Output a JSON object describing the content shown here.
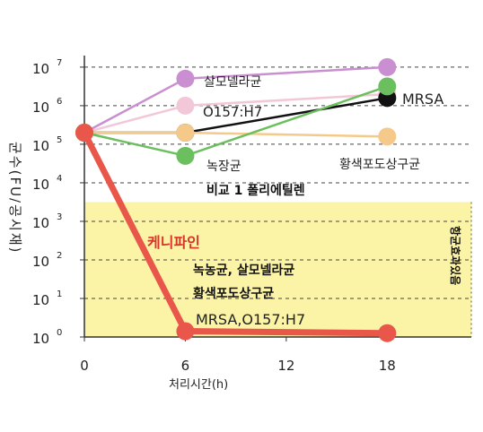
{
  "chart_data": {
    "type": "line",
    "xlabel": "처리시간(h)",
    "ylabel": "균수(FU/공시재)",
    "x_ticks": [
      0,
      6,
      12,
      18
    ],
    "xlim": [
      0,
      23
    ],
    "ylim": [
      0,
      7.3
    ],
    "y_ticks": [
      {
        "v": 0,
        "base": "10",
        "exp": "0"
      },
      {
        "v": 1,
        "base": "10",
        "exp": "1"
      },
      {
        "v": 2,
        "base": "10",
        "exp": "2"
      },
      {
        "v": 3,
        "base": "10",
        "exp": "3"
      },
      {
        "v": 4,
        "base": "10",
        "exp": "4"
      },
      {
        "v": 5,
        "base": "10",
        "exp": "5"
      },
      {
        "v": 6,
        "base": "10",
        "exp": "6"
      },
      {
        "v": 7,
        "base": "10",
        "exp": "7"
      }
    ],
    "y_scale": "log",
    "shaded_region": {
      "y_from": 0,
      "y_to": 3.5,
      "color": "#fbf3a6",
      "label": "항균효과있음"
    },
    "grid": "dashed horizontal",
    "series": [
      {
        "name": "살모넬라균",
        "color": "#c98fd0",
        "x": [
          0,
          6,
          18
        ],
        "y": [
          5.3,
          6.7,
          7.0
        ]
      },
      {
        "name": "O157:H7",
        "color": "#f2c8d8",
        "x": [
          0,
          6,
          18
        ],
        "y": [
          5.3,
          6.0,
          6.3
        ]
      },
      {
        "name": "MRSA",
        "color": "#111111",
        "x": [
          0,
          6,
          18
        ],
        "y": [
          5.3,
          5.3,
          6.2
        ]
      },
      {
        "name": "황색포도상구균",
        "color": "#f5c98a",
        "x": [
          0,
          6,
          18
        ],
        "y": [
          5.3,
          5.3,
          5.2
        ]
      },
      {
        "name": "녹장균",
        "color": "#6bbf5f",
        "x": [
          0,
          6,
          18
        ],
        "y": [
          5.3,
          4.7,
          6.5
        ]
      },
      {
        "name": "케니파인",
        "color": "#e9574a",
        "x": [
          0,
          6,
          18
        ],
        "y": [
          5.3,
          0.15,
          0.1
        ]
      }
    ],
    "annotations": {
      "salmonella": "살모넬라균",
      "o157": "O157:H7",
      "mrsa": "MRSA",
      "staph": "황색포도상구균",
      "green": "녹장균",
      "control": "비교 1 폴리에틸렌",
      "kenipine": "케니파인",
      "kenipine_line1": "녹농균, 살모넬라균",
      "kenipine_line2": "황색포도상구균",
      "kenipine_line3": "MRSA,O157:H7"
    }
  }
}
